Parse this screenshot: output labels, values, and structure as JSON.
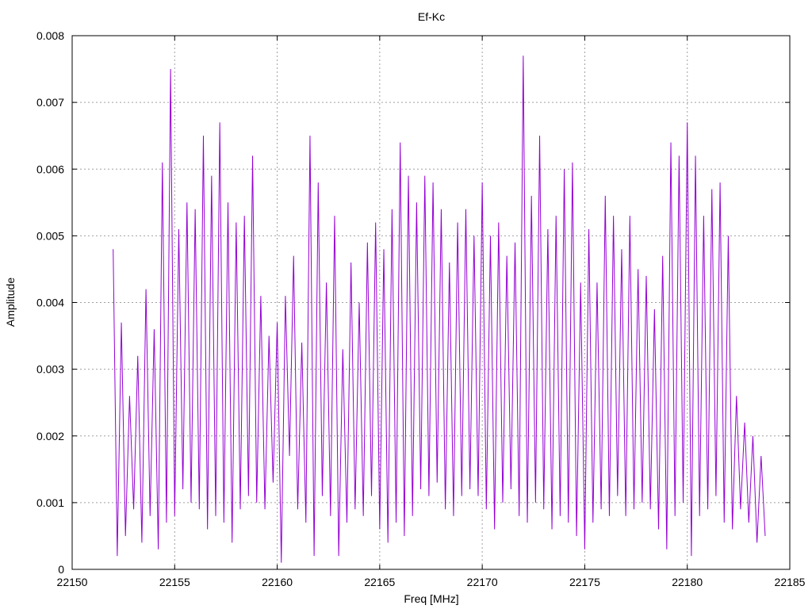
{
  "chart_data": {
    "type": "line",
    "title": "Ef-Kc",
    "xlabel": "Freq [MHz]",
    "ylabel": "Amplitude",
    "xlim": [
      22150,
      22185
    ],
    "ylim": [
      0,
      0.008
    ],
    "x_ticks": [
      22150,
      22155,
      22160,
      22165,
      22170,
      22175,
      22180,
      22185
    ],
    "x_tick_labels": [
      "22150",
      "22155",
      "22160",
      "22165",
      "22170",
      "22175",
      "22180",
      "22185"
    ],
    "y_ticks": [
      0,
      0.001,
      0.002,
      0.003,
      0.004,
      0.005,
      0.006,
      0.007,
      0.008
    ],
    "y_tick_labels": [
      "0",
      "0.001",
      "0.002",
      "0.003",
      "0.004",
      "0.005",
      "0.006",
      "0.007",
      "0.008"
    ],
    "grid": true,
    "legend": "none",
    "series": [
      {
        "color": "#9400d3",
        "x": [
          22152.0,
          22152.2,
          22152.4,
          22152.6,
          22152.8,
          22153.0,
          22153.2,
          22153.4,
          22153.6,
          22153.8,
          22154.0,
          22154.2,
          22154.4,
          22154.6,
          22154.8,
          22155.0,
          22155.2,
          22155.4,
          22155.6,
          22155.8,
          22156.0,
          22156.2,
          22156.4,
          22156.6,
          22156.8,
          22157.0,
          22157.2,
          22157.4,
          22157.6,
          22157.8,
          22158.0,
          22158.2,
          22158.4,
          22158.6,
          22158.8,
          22159.0,
          22159.2,
          22159.4,
          22159.6,
          22159.8,
          22160.0,
          22160.2,
          22160.4,
          22160.6,
          22160.8,
          22161.0,
          22161.2,
          22161.4,
          22161.6,
          22161.8,
          22162.0,
          22162.2,
          22162.4,
          22162.6,
          22162.8,
          22163.0,
          22163.2,
          22163.4,
          22163.6,
          22163.8,
          22164.0,
          22164.2,
          22164.4,
          22164.6,
          22164.8,
          22165.0,
          22165.2,
          22165.4,
          22165.6,
          22165.8,
          22166.0,
          22166.2,
          22166.4,
          22166.6,
          22166.8,
          22167.0,
          22167.2,
          22167.4,
          22167.6,
          22167.8,
          22168.0,
          22168.2,
          22168.4,
          22168.6,
          22168.8,
          22169.0,
          22169.2,
          22169.4,
          22169.6,
          22169.8,
          22170.0,
          22170.2,
          22170.4,
          22170.6,
          22170.8,
          22171.0,
          22171.2,
          22171.4,
          22171.6,
          22171.8,
          22172.0,
          22172.2,
          22172.4,
          22172.6,
          22172.8,
          22173.0,
          22173.2,
          22173.4,
          22173.6,
          22173.8,
          22174.0,
          22174.2,
          22174.4,
          22174.6,
          22174.8,
          22175.0,
          22175.2,
          22175.4,
          22175.6,
          22175.8,
          22176.0,
          22176.2,
          22176.4,
          22176.6,
          22176.8,
          22177.0,
          22177.2,
          22177.4,
          22177.6,
          22177.8,
          22178.0,
          22178.2,
          22178.4,
          22178.6,
          22178.8,
          22179.0,
          22179.2,
          22179.4,
          22179.6,
          22179.8,
          22180.0,
          22180.2,
          22180.4,
          22180.6,
          22180.8,
          22181.0,
          22181.2,
          22181.4,
          22181.6,
          22181.8,
          22182.0,
          22182.2,
          22182.4,
          22182.6,
          22182.8,
          22183.0,
          22183.2,
          22183.4,
          22183.6,
          22183.8
        ],
        "y": [
          0.0048,
          0.0002,
          0.0037,
          0.0005,
          0.0026,
          0.0009,
          0.0032,
          0.0004,
          0.0042,
          0.0008,
          0.0036,
          0.0003,
          0.0061,
          0.0007,
          0.0075,
          0.0008,
          0.0051,
          0.0012,
          0.0055,
          0.001,
          0.0054,
          0.0009,
          0.0065,
          0.0006,
          0.0059,
          0.0008,
          0.0067,
          0.0007,
          0.0055,
          0.0004,
          0.0052,
          0.0009,
          0.0053,
          0.0011,
          0.0062,
          0.001,
          0.0041,
          0.0009,
          0.0035,
          0.0013,
          0.0037,
          0.0001,
          0.0041,
          0.0017,
          0.0047,
          0.0009,
          0.0034,
          0.0007,
          0.0065,
          0.0002,
          0.0058,
          0.0011,
          0.0043,
          0.0008,
          0.0053,
          0.0002,
          0.0033,
          0.0007,
          0.0046,
          0.0009,
          0.004,
          0.0008,
          0.0049,
          0.0011,
          0.0052,
          0.0006,
          0.0048,
          0.0004,
          0.0054,
          0.0007,
          0.0064,
          0.0005,
          0.0059,
          0.0008,
          0.0055,
          0.0012,
          0.0059,
          0.0011,
          0.0058,
          0.0013,
          0.0054,
          0.0009,
          0.0046,
          0.0008,
          0.0052,
          0.0011,
          0.0054,
          0.0012,
          0.005,
          0.0011,
          0.0058,
          0.0009,
          0.005,
          0.0006,
          0.0052,
          0.001,
          0.0047,
          0.0012,
          0.0049,
          0.0008,
          0.0077,
          0.0007,
          0.0056,
          0.001,
          0.0065,
          0.0009,
          0.0051,
          0.0006,
          0.0053,
          0.0008,
          0.006,
          0.0007,
          0.0061,
          0.0005,
          0.0043,
          0.0003,
          0.0051,
          0.0007,
          0.0043,
          0.0009,
          0.0056,
          0.0008,
          0.0053,
          0.0011,
          0.0048,
          0.0008,
          0.0053,
          0.0009,
          0.0045,
          0.001,
          0.0044,
          0.0009,
          0.0039,
          0.0006,
          0.0047,
          0.0003,
          0.0064,
          0.0008,
          0.0062,
          0.001,
          0.0067,
          0.0002,
          0.0062,
          0.0008,
          0.0053,
          0.0009,
          0.0057,
          0.0011,
          0.0058,
          0.0007,
          0.005,
          0.0006,
          0.0026,
          0.0009,
          0.0022,
          0.0007,
          0.002,
          0.0004,
          0.0017,
          0.0005
        ]
      }
    ]
  }
}
